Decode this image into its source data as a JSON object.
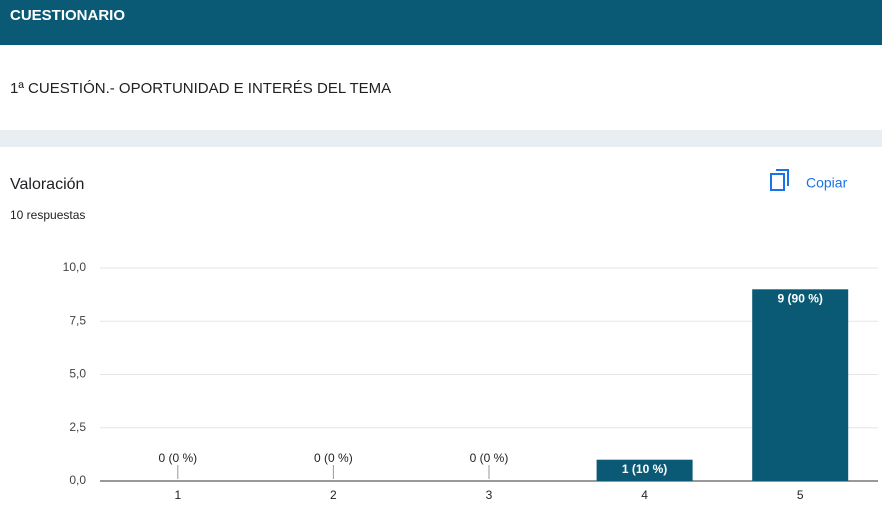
{
  "header": {
    "title": "CUESTIONARIO"
  },
  "question": {
    "title": "1ª CUESTIÓN.- OPORTUNIDAD E INTERÉS DEL TEMA"
  },
  "card": {
    "title": "Valoración",
    "responses": "10 respuestas",
    "copy_button": "Copiar"
  },
  "chart_data": {
    "type": "bar",
    "categories": [
      "1",
      "2",
      "3",
      "4",
      "5"
    ],
    "values": [
      0,
      0,
      0,
      1,
      9
    ],
    "value_labels": [
      "0 (0 %)",
      "0 (0 %)",
      "0 (0 %)",
      "1 (10 %)",
      "9 (90 %)"
    ],
    "color": "#0b5a75",
    "ylim": [
      0,
      10
    ],
    "yticks": [
      {
        "value": 0,
        "label": "0,0"
      },
      {
        "value": 2.5,
        "label": "2,5"
      },
      {
        "value": 5,
        "label": "5,0"
      },
      {
        "value": 7.5,
        "label": "7,5"
      },
      {
        "value": 10,
        "label": "10,0"
      }
    ],
    "grid": true
  }
}
